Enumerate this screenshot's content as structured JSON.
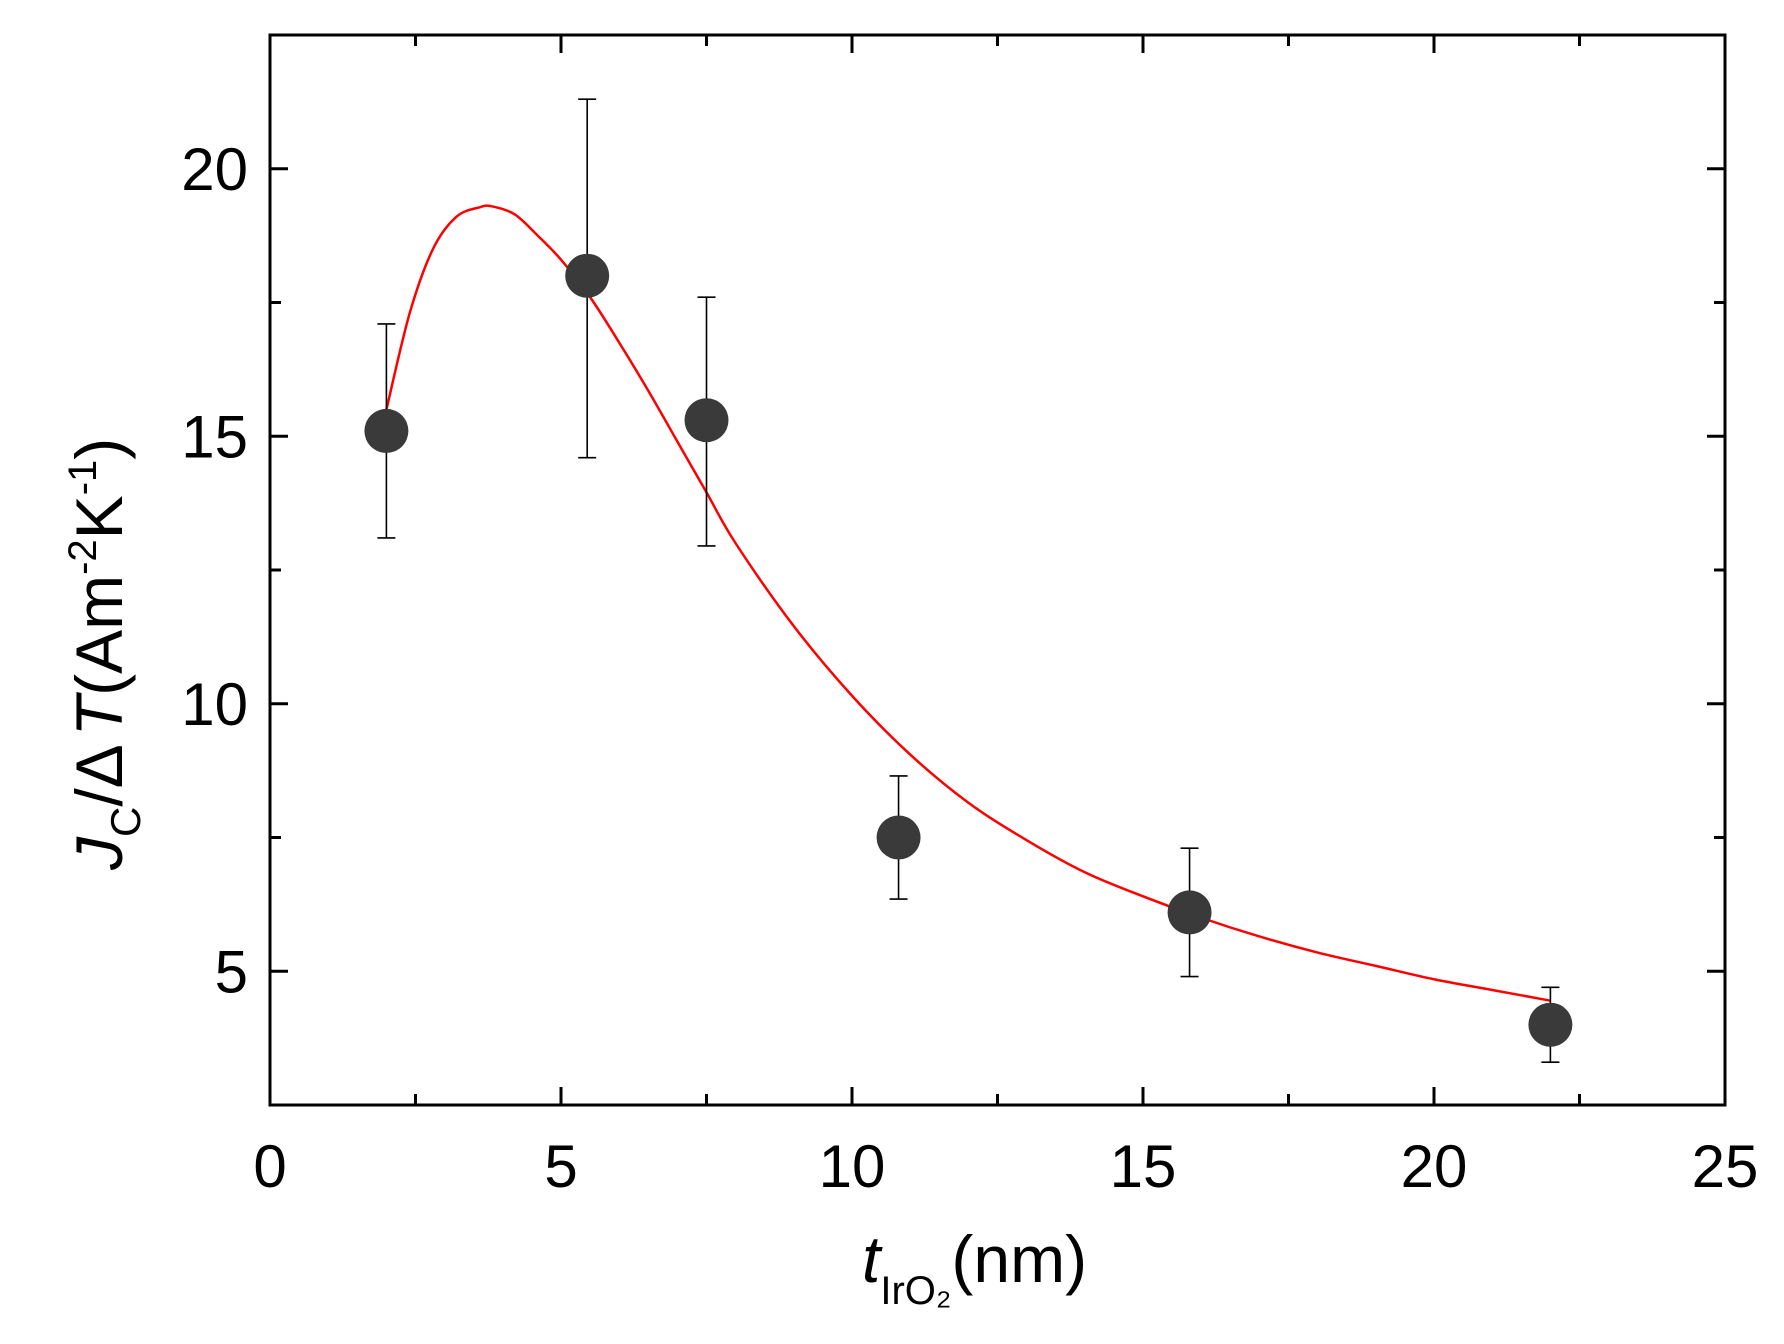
{
  "chart_data": {
    "type": "scatter",
    "title": "",
    "xlabel": {
      "main": "t",
      "sub": "IrO₂",
      "unit": "(nm)"
    },
    "ylabel": {
      "main": "J",
      "sub": "C",
      "middle": "/Δ",
      "symbol": "T",
      "unit_open": "(Am",
      "exp1": "-2",
      "unit_k": "K",
      "exp2": "-1",
      "unit_close": ")"
    },
    "xlim": [
      0,
      25
    ],
    "ylim": [
      2.5,
      22.5
    ],
    "x_ticks": [
      0,
      5,
      10,
      15,
      20,
      25
    ],
    "x_tick_labels": [
      "0",
      "5",
      "10",
      "15",
      "20",
      "25"
    ],
    "y_ticks": [
      5,
      10,
      15,
      20
    ],
    "y_tick_labels": [
      "5",
      "10",
      "15",
      "20"
    ],
    "x_minor_ticks": [
      2.5,
      7.5,
      12.5,
      17.5,
      22.5
    ],
    "y_minor_ticks": [
      7.5,
      12.5,
      17.5
    ],
    "grid": false,
    "legend": "none",
    "series": [
      {
        "kind": "scatter_with_errorbars",
        "color": "#3a3a3a",
        "x": [
          2.0,
          5.45,
          7.5,
          10.8,
          15.8,
          22.0
        ],
        "y": [
          15.1,
          18.0,
          15.3,
          7.5,
          6.1,
          4.0
        ],
        "yerr_low": [
          2.0,
          3.4,
          2.35,
          1.15,
          1.2,
          0.7
        ],
        "yerr_high": [
          2.0,
          3.3,
          2.3,
          1.15,
          1.2,
          0.7
        ]
      },
      {
        "kind": "fit_line",
        "color": "#ff0000",
        "x": [
          2.0,
          2.4,
          2.8,
          3.2,
          3.6,
          3.8,
          4.2,
          4.6,
          5.0,
          5.5,
          6.0,
          6.5,
          7.0,
          7.5,
          8.0,
          9.0,
          10.0,
          11.0,
          12.0,
          13.0,
          14.0,
          15.0,
          16.0,
          17.0,
          18.0,
          19.0,
          20.0,
          21.0,
          22.0
        ],
        "y": [
          15.5,
          17.3,
          18.5,
          19.1,
          19.28,
          19.3,
          19.15,
          18.75,
          18.3,
          17.6,
          16.75,
          15.85,
          14.9,
          13.95,
          13.0,
          11.45,
          10.15,
          9.05,
          8.15,
          7.45,
          6.85,
          6.4,
          6.0,
          5.65,
          5.35,
          5.1,
          4.85,
          4.65,
          4.45
        ]
      }
    ]
  }
}
